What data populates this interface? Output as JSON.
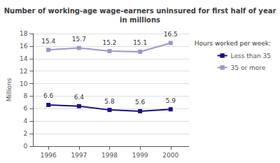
{
  "chart_data": {
    "type": "line",
    "title": "Number of working-age wage-earners uninsured for first half of year\nin millions",
    "x": [
      1996,
      1997,
      1998,
      1999,
      2000
    ],
    "series": [
      {
        "name": "Less than 35",
        "color": "#1a1080",
        "values": [
          6.6,
          6.4,
          5.8,
          5.6,
          5.9
        ]
      },
      {
        "name": "35 or more",
        "color": "#9b97cc",
        "values": [
          15.4,
          15.7,
          15.2,
          15.1,
          16.5
        ]
      }
    ],
    "ylabel": "Millions",
    "xlim": [
      1995.5,
      2000.6
    ],
    "xticks": [
      1996,
      1997,
      1998,
      1999,
      2000
    ],
    "ylim": [
      0,
      18
    ],
    "yticks": [
      0,
      2,
      4,
      6,
      8,
      10,
      12,
      14,
      16,
      18
    ],
    "grid": true,
    "legend": "right",
    "legend_title": "Hours worked per week:",
    "data_labels": true,
    "marker": "square"
  }
}
